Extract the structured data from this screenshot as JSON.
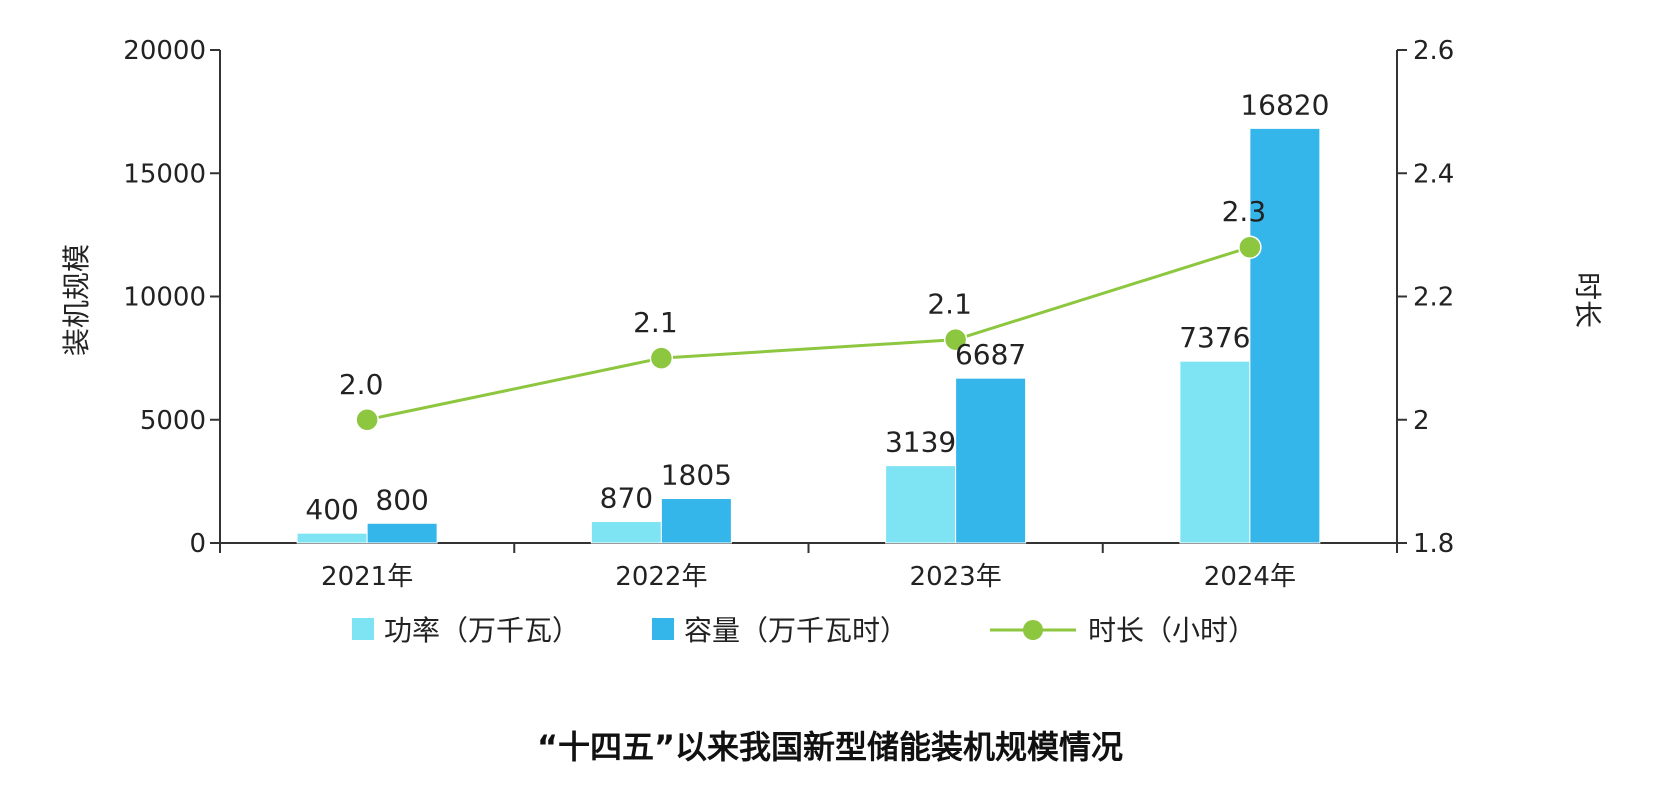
{
  "chart_data": {
    "type": "bar",
    "title": "“十四五”以来我国新型储能装机规模情况",
    "categories": [
      "2021年",
      "2022年",
      "2023年",
      "2024年"
    ],
    "series": [
      {
        "name": "功率（万千瓦）",
        "kind": "bar",
        "axis": "left",
        "color": "#7EE3F2",
        "values": [
          400,
          870,
          3139,
          7376
        ]
      },
      {
        "name": "容量（万千瓦时）",
        "kind": "bar",
        "axis": "left",
        "color": "#35B6EA",
        "values": [
          800,
          1805,
          6687,
          16820
        ]
      },
      {
        "name": "时长（小时）",
        "kind": "line",
        "axis": "right",
        "color": "#8DC63F",
        "values": [
          2.0,
          2.1,
          2.13,
          2.28
        ],
        "labels": [
          "2.0",
          "2.1",
          "2.1",
          "2.3"
        ]
      }
    ],
    "ylabel": "装机规模",
    "ylim": [
      0,
      20000
    ],
    "yticks": [
      "0",
      "5000",
      "10000",
      "15000",
      "20000"
    ],
    "y2label": "时长",
    "y2lim": [
      1.8,
      2.6
    ],
    "y2ticks": [
      "1.8",
      "2",
      "2.2",
      "2.4",
      "2.6"
    ],
    "legend_position": "bottom",
    "grid": false
  }
}
